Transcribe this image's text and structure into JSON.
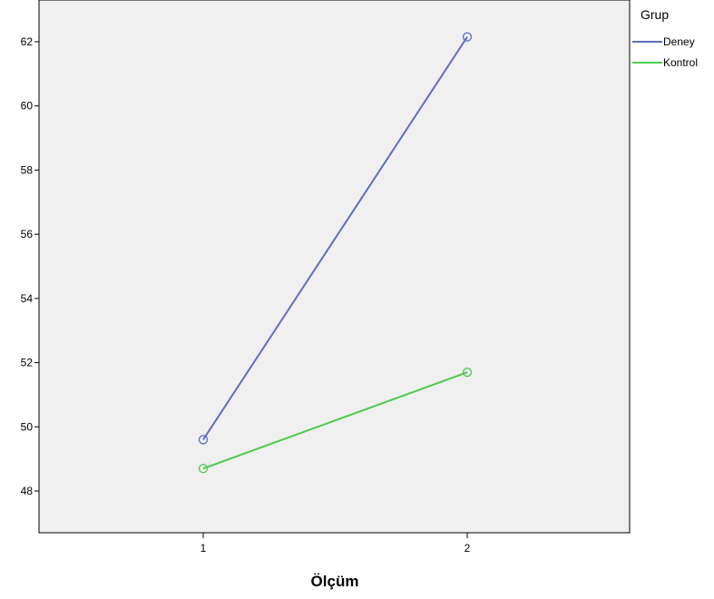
{
  "chart_data": {
    "type": "line",
    "xlabel": "Ölçüm",
    "ylabel": "",
    "categories": [
      "1",
      "2"
    ],
    "ylim": [
      46.7,
      63.3
    ],
    "yticks": [
      "48",
      "50",
      "52",
      "54",
      "56",
      "58",
      "60",
      "62"
    ],
    "grid": false,
    "legend": {
      "title": "Grup",
      "placement": "right"
    },
    "series": [
      {
        "name": "Deney",
        "values": [
          49.6,
          62.15
        ],
        "color": "#5b6fc4"
      },
      {
        "name": "Kontrol",
        "values": [
          48.7,
          51.7
        ],
        "color": "#4ccb4c"
      }
    ]
  }
}
